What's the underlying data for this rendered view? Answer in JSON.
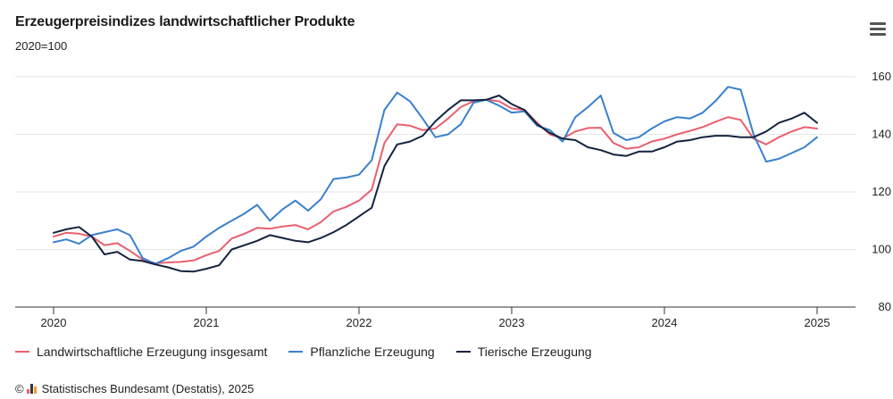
{
  "header": {
    "title": "Erzeugerpreisindizes landwirtschaftlicher Produkte",
    "subtitle": "2020=100",
    "menu_icon": "hamburger-menu-icon"
  },
  "source": {
    "copyright": "©",
    "logo_icon": "destatis-logo-icon",
    "text": "Statistisches Bundesamt (Destatis), 2025"
  },
  "colors": {
    "series_1": "#e8606e",
    "series_2": "#3a80cc",
    "series_3": "#14233f",
    "grid": "#e6e6e6",
    "axis": "#333333"
  },
  "chart_data": {
    "type": "line",
    "title": "Erzeugerpreisindizes landwirtschaftlicher Produkte",
    "subtitle": "2020=100",
    "x_ticks": [
      "2020",
      "2021",
      "2022",
      "2023",
      "2024",
      "2025"
    ],
    "y_ticks": [
      80,
      100,
      120,
      140,
      160
    ],
    "xlim": [
      "2020-01",
      "2025-03"
    ],
    "ylim": [
      80,
      160
    ],
    "y_axis_position": "right",
    "grid": "horizontal",
    "legend_position": "bottom-left",
    "x": [
      "2020-01",
      "2020-02",
      "2020-03",
      "2020-04",
      "2020-05",
      "2020-06",
      "2020-07",
      "2020-08",
      "2020-09",
      "2020-10",
      "2020-11",
      "2020-12",
      "2021-01",
      "2021-02",
      "2021-03",
      "2021-04",
      "2021-05",
      "2021-06",
      "2021-07",
      "2021-08",
      "2021-09",
      "2021-10",
      "2021-11",
      "2021-12",
      "2022-01",
      "2022-02",
      "2022-03",
      "2022-04",
      "2022-05",
      "2022-06",
      "2022-07",
      "2022-08",
      "2022-09",
      "2022-10",
      "2022-11",
      "2022-12",
      "2023-01",
      "2023-02",
      "2023-03",
      "2023-04",
      "2023-05",
      "2023-06",
      "2023-07",
      "2023-08",
      "2023-09",
      "2023-10",
      "2023-11",
      "2023-12",
      "2024-01",
      "2024-02",
      "2024-03",
      "2024-04",
      "2024-05",
      "2024-06",
      "2024-07",
      "2024-08",
      "2024-09",
      "2024-10",
      "2024-11",
      "2024-12",
      "2025-01"
    ],
    "series": [
      {
        "name": "Landwirtschaftliche Erzeugung insgesamt",
        "values": [
          104.5,
          105.8,
          105.5,
          104.5,
          101.5,
          102.2,
          99.5,
          96.5,
          95.2,
          95.5,
          95.7,
          96.2,
          98.0,
          99.5,
          103.8,
          105.5,
          107.5,
          107.2,
          108.0,
          108.5,
          107.0,
          109.5,
          113.2,
          114.8,
          117.0,
          120.8,
          137.0,
          143.5,
          143.0,
          141.5,
          142.0,
          145.5,
          149.5,
          151.5,
          152.0,
          151.5,
          149.0,
          148.5,
          144.0,
          140.0,
          138.5,
          141.0,
          142.2,
          142.3,
          137.0,
          135.0,
          135.5,
          137.5,
          138.5,
          140.0,
          141.2,
          142.5,
          144.3,
          146.0,
          145.0,
          138.5,
          136.5,
          139.0,
          141.0,
          142.5,
          142.0
        ]
      },
      {
        "name": "Pflanzliche Erzeugung",
        "values": [
          102.5,
          103.5,
          102.0,
          105.0,
          106.0,
          107.0,
          105.0,
          97.0,
          95.0,
          97.0,
          99.5,
          101.0,
          104.5,
          107.5,
          110.0,
          112.5,
          115.5,
          110.0,
          114.0,
          117.0,
          113.5,
          117.5,
          124.5,
          125.0,
          126.0,
          131.0,
          148.5,
          154.5,
          151.5,
          145.5,
          139.0,
          140.0,
          143.5,
          151.0,
          152.0,
          150.0,
          147.5,
          148.0,
          143.0,
          141.5,
          137.5,
          146.0,
          149.5,
          153.5,
          140.5,
          138.0,
          139.0,
          142.0,
          144.5,
          146.0,
          145.5,
          147.5,
          151.5,
          156.5,
          155.5,
          140.0,
          130.5,
          131.5,
          133.5,
          135.5,
          139.0
        ]
      },
      {
        "name": "Tierische Erzeugung",
        "values": [
          105.8,
          107.0,
          107.8,
          104.5,
          98.3,
          99.2,
          96.5,
          96.0,
          94.8,
          93.8,
          92.5,
          92.3,
          93.3,
          94.5,
          100.0,
          101.5,
          103.0,
          105.0,
          104.0,
          103.0,
          102.5,
          104.0,
          106.0,
          108.5,
          111.5,
          114.5,
          129.0,
          136.5,
          137.5,
          139.5,
          144.5,
          148.5,
          151.8,
          151.8,
          152.0,
          153.5,
          150.5,
          148.5,
          143.5,
          140.5,
          138.5,
          138.0,
          135.5,
          134.5,
          133.0,
          132.5,
          134.0,
          134.0,
          135.5,
          137.5,
          138.0,
          139.0,
          139.5,
          139.5,
          139.0,
          139.0,
          141.0,
          144.0,
          145.5,
          147.5,
          144.0
        ]
      }
    ]
  }
}
